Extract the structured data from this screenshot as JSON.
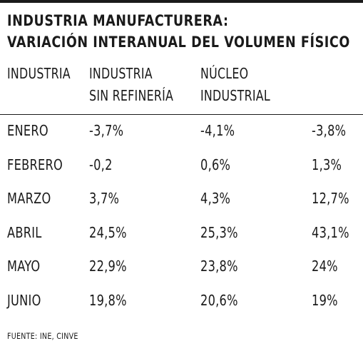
{
  "title": {
    "line1": "INDUSTRIA MANUFACTURERA:",
    "line2": "VARIACIÓN INTERANUAL DEL VOLUMEN FÍSICO"
  },
  "header": {
    "col1": [
      "INDUSTRIA"
    ],
    "col2": [
      "INDUSTRIA",
      "SIN REFINERÍA"
    ],
    "col3": [
      "NÚCLEO",
      "INDUSTRIAL"
    ],
    "col4": [
      ""
    ]
  },
  "rows": [
    {
      "month": "ENERO",
      "industria_sin_refineria": "-3,7%",
      "nucleo_industrial": "-4,1%",
      "col4": "-3,8%"
    },
    {
      "month": "FEBRERO",
      "industria_sin_refineria": "-0,2",
      "nucleo_industrial": "0,6%",
      "col4": "1,3%"
    },
    {
      "month": "MARZO",
      "industria_sin_refineria": "3,7%",
      "nucleo_industrial": "4,3%",
      "col4": "12,7%"
    },
    {
      "month": "ABRIL",
      "industria_sin_refineria": "24,5%",
      "nucleo_industrial": "25,3%",
      "col4": "43,1%"
    },
    {
      "month": "MAYO",
      "industria_sin_refineria": "22,9%",
      "nucleo_industrial": "23,8%",
      "col4": "24%"
    },
    {
      "month": "JUNIO",
      "industria_sin_refineria": "19,8%",
      "nucleo_industrial": "20,6%",
      "col4": "19%"
    }
  ],
  "source": "FUENTE: INE, CINVE"
}
